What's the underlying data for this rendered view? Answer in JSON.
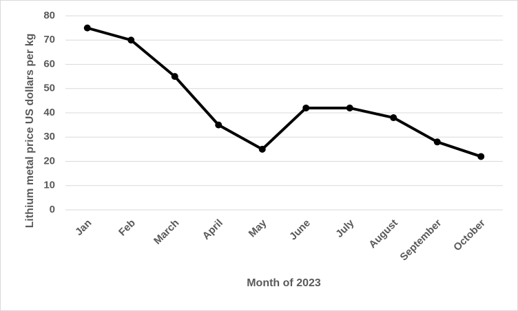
{
  "chart_data": {
    "type": "line",
    "y_label": "Lithium metal price US dollars per kg",
    "x_label": "Month of 2023",
    "categories": [
      "Jan",
      "Feb",
      "March",
      "April",
      "May",
      "June",
      "July",
      "August",
      "September",
      "October"
    ],
    "series": [
      {
        "name": "Lithium metal price",
        "color": "#000000",
        "values": [
          75,
          70,
          55,
          35,
          25,
          42,
          42,
          38,
          28,
          22
        ]
      }
    ],
    "ylim": [
      0,
      80
    ],
    "yticks": [
      0,
      10,
      20,
      30,
      40,
      50,
      60,
      70,
      80
    ],
    "grid": true
  }
}
